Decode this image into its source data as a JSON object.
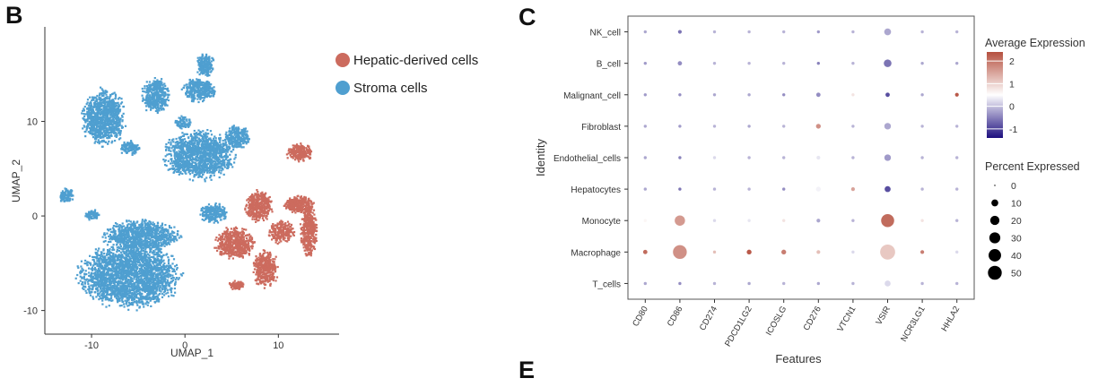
{
  "panels": {
    "b": "B",
    "c": "C",
    "e": "E"
  },
  "colors": {
    "hepatic": "#cc6b5e",
    "stroma": "#4f9fd0",
    "expr_high": "#b5503f",
    "expr_mid": "#ffffff",
    "expr_low": "#1d0f7e"
  },
  "chart_data": [
    {
      "type": "scatter",
      "xlabel": "UMAP_1",
      "ylabel": "UMAP_2",
      "xlim": [
        -15,
        16.5
      ],
      "ylim": [
        -12.5,
        20
      ],
      "xticks": [
        -10,
        0,
        10
      ],
      "yticks": [
        -10,
        0,
        10
      ],
      "grid": false,
      "legend_position": "top-right",
      "series": [
        {
          "name": "Hepatic-derived cells",
          "color": "#cc6b5e",
          "clusters": [
            {
              "x": 5.2,
              "y": -2.8,
              "rx": 2.3,
              "ry": 1.8,
              "n": 550
            },
            {
              "x": 7.8,
              "y": 1.2,
              "rx": 1.6,
              "ry": 1.8,
              "n": 380
            },
            {
              "x": 8.5,
              "y": -5.5,
              "rx": 1.5,
              "ry": 2.1,
              "n": 380
            },
            {
              "x": 10.2,
              "y": -1.6,
              "rx": 1.5,
              "ry": 1.4,
              "n": 220
            },
            {
              "x": 12.1,
              "y": 1.3,
              "rx": 1.7,
              "ry": 1.0,
              "n": 260
            },
            {
              "x": 13.2,
              "y": -1.5,
              "rx": 1.0,
              "ry": 3.0,
              "n": 380
            },
            {
              "x": 12.2,
              "y": 6.8,
              "rx": 1.6,
              "ry": 1.0,
              "n": 230
            },
            {
              "x": 5.5,
              "y": -7.2,
              "rx": 0.9,
              "ry": 0.6,
              "n": 90
            }
          ]
        },
        {
          "name": "Stroma cells",
          "color": "#4f9fd0",
          "clusters": [
            {
              "x": -6.0,
              "y": -6.2,
              "rx": 6.0,
              "ry": 3.8,
              "n": 2400
            },
            {
              "x": -4.8,
              "y": -2.0,
              "rx": 4.5,
              "ry": 1.8,
              "n": 900
            },
            {
              "x": 1.5,
              "y": 6.5,
              "rx": 4.2,
              "ry": 2.9,
              "n": 1300
            },
            {
              "x": -8.8,
              "y": 10.5,
              "rx": 2.5,
              "ry": 3.3,
              "n": 950
            },
            {
              "x": -3.2,
              "y": 12.8,
              "rx": 1.6,
              "ry": 2.0,
              "n": 380
            },
            {
              "x": 1.4,
              "y": 13.4,
              "rx": 2.0,
              "ry": 1.4,
              "n": 320
            },
            {
              "x": 2.1,
              "y": 16.0,
              "rx": 1.1,
              "ry": 1.3,
              "n": 200
            },
            {
              "x": 5.5,
              "y": 8.5,
              "rx": 1.5,
              "ry": 1.4,
              "n": 220
            },
            {
              "x": 3.0,
              "y": 0.4,
              "rx": 1.6,
              "ry": 1.1,
              "n": 220
            },
            {
              "x": -12.8,
              "y": 2.2,
              "rx": 0.9,
              "ry": 0.9,
              "n": 110
            },
            {
              "x": -10.0,
              "y": 0.2,
              "rx": 0.8,
              "ry": 0.6,
              "n": 80
            },
            {
              "x": -0.3,
              "y": 10.0,
              "rx": 1.0,
              "ry": 0.7,
              "n": 90
            },
            {
              "x": -6.0,
              "y": 7.3,
              "rx": 1.2,
              "ry": 0.9,
              "n": 120
            }
          ]
        }
      ]
    },
    {
      "type": "scatter",
      "subtype": "dot_plot",
      "xlabel": "Features",
      "ylabel": "Identity",
      "features": [
        "CD80",
        "CD86",
        "CD274",
        "PDCD1LG2",
        "ICOSLG",
        "CD276",
        "VTCN1",
        "VSIR",
        "NCR3LG1",
        "HHLA2"
      ],
      "identities": [
        "NK_cell",
        "B_cell",
        "Malignant_cell",
        "Fibroblast",
        "Endothelial_cells",
        "Hepatocytes",
        "Monocyte",
        "Macrophage",
        "T_cells"
      ],
      "color_legend": {
        "title": "Average Expression",
        "ticks": [
          2,
          1,
          0,
          -1
        ],
        "range": [
          -1.4,
          2.4
        ]
      },
      "size_legend": {
        "title": "Percent Expressed",
        "ticks": [
          0,
          10,
          20,
          30,
          40,
          50
        ]
      },
      "grid": false,
      "legend_position": "right",
      "points": [
        {
          "identity": "NK_cell",
          "feature": "CD80",
          "pct": 1,
          "avg": -0.2
        },
        {
          "identity": "NK_cell",
          "feature": "CD86",
          "pct": 2,
          "avg": -0.6
        },
        {
          "identity": "NK_cell",
          "feature": "CD274",
          "pct": 1,
          "avg": -0.1
        },
        {
          "identity": "NK_cell",
          "feature": "PDCD1LG2",
          "pct": 1,
          "avg": -0.1
        },
        {
          "identity": "NK_cell",
          "feature": "ICOSLG",
          "pct": 1,
          "avg": -0.1
        },
        {
          "identity": "NK_cell",
          "feature": "CD276",
          "pct": 1,
          "avg": -0.3
        },
        {
          "identity": "NK_cell",
          "feature": "VTCN1",
          "pct": 1,
          "avg": -0.1
        },
        {
          "identity": "NK_cell",
          "feature": "VSIR",
          "pct": 10,
          "avg": -0.2
        },
        {
          "identity": "NK_cell",
          "feature": "NCR3LG1",
          "pct": 1,
          "avg": -0.1
        },
        {
          "identity": "NK_cell",
          "feature": "HHLA2",
          "pct": 1,
          "avg": -0.1
        },
        {
          "identity": "B_cell",
          "feature": "CD80",
          "pct": 1,
          "avg": -0.3
        },
        {
          "identity": "B_cell",
          "feature": "CD86",
          "pct": 3,
          "avg": -0.4
        },
        {
          "identity": "B_cell",
          "feature": "CD274",
          "pct": 1,
          "avg": -0.1
        },
        {
          "identity": "B_cell",
          "feature": "PDCD1LG2",
          "pct": 1,
          "avg": -0.1
        },
        {
          "identity": "B_cell",
          "feature": "ICOSLG",
          "pct": 1,
          "avg": -0.1
        },
        {
          "identity": "B_cell",
          "feature": "CD276",
          "pct": 1,
          "avg": -0.5
        },
        {
          "identity": "B_cell",
          "feature": "VTCN1",
          "pct": 1,
          "avg": -0.1
        },
        {
          "identity": "B_cell",
          "feature": "VSIR",
          "pct": 13,
          "avg": -0.6
        },
        {
          "identity": "B_cell",
          "feature": "NCR3LG1",
          "pct": 1,
          "avg": -0.2
        },
        {
          "identity": "B_cell",
          "feature": "HHLA2",
          "pct": 1,
          "avg": -0.2
        },
        {
          "identity": "Malignant_cell",
          "feature": "CD80",
          "pct": 1,
          "avg": -0.3
        },
        {
          "identity": "Malignant_cell",
          "feature": "CD86",
          "pct": 1,
          "avg": -0.4
        },
        {
          "identity": "Malignant_cell",
          "feature": "CD274",
          "pct": 1,
          "avg": -0.2
        },
        {
          "identity": "Malignant_cell",
          "feature": "PDCD1LG2",
          "pct": 1,
          "avg": -0.2
        },
        {
          "identity": "Malignant_cell",
          "feature": "ICOSLG",
          "pct": 1,
          "avg": -0.4
        },
        {
          "identity": "Malignant_cell",
          "feature": "CD276",
          "pct": 3,
          "avg": -0.4
        },
        {
          "identity": "Malignant_cell",
          "feature": "VTCN1",
          "pct": 1,
          "avg": 0.8
        },
        {
          "identity": "Malignant_cell",
          "feature": "VSIR",
          "pct": 3,
          "avg": -0.9
        },
        {
          "identity": "Malignant_cell",
          "feature": "NCR3LG1",
          "pct": 1,
          "avg": -0.2
        },
        {
          "identity": "Malignant_cell",
          "feature": "HHLA2",
          "pct": 2,
          "avg": 2.3
        },
        {
          "identity": "Fibroblast",
          "feature": "CD80",
          "pct": 1,
          "avg": -0.2
        },
        {
          "identity": "Fibroblast",
          "feature": "CD86",
          "pct": 1,
          "avg": -0.3
        },
        {
          "identity": "Fibroblast",
          "feature": "CD274",
          "pct": 1,
          "avg": -0.1
        },
        {
          "identity": "Fibroblast",
          "feature": "PDCD1LG2",
          "pct": 1,
          "avg": -0.2
        },
        {
          "identity": "Fibroblast",
          "feature": "ICOSLG",
          "pct": 1,
          "avg": -0.1
        },
        {
          "identity": "Fibroblast",
          "feature": "CD276",
          "pct": 4,
          "avg": 1.7
        },
        {
          "identity": "Fibroblast",
          "feature": "VTCN1",
          "pct": 1,
          "avg": -0.1
        },
        {
          "identity": "Fibroblast",
          "feature": "VSIR",
          "pct": 9,
          "avg": -0.2
        },
        {
          "identity": "Fibroblast",
          "feature": "NCR3LG1",
          "pct": 1,
          "avg": -0.1
        },
        {
          "identity": "Fibroblast",
          "feature": "HHLA2",
          "pct": 1,
          "avg": -0.1
        },
        {
          "identity": "Endothelial_cells",
          "feature": "CD80",
          "pct": 1,
          "avg": -0.2
        },
        {
          "identity": "Endothelial_cells",
          "feature": "CD86",
          "pct": 1,
          "avg": -0.5
        },
        {
          "identity": "Endothelial_cells",
          "feature": "CD274",
          "pct": 1,
          "avg": 0.2
        },
        {
          "identity": "Endothelial_cells",
          "feature": "PDCD1LG2",
          "pct": 1,
          "avg": -0.1
        },
        {
          "identity": "Endothelial_cells",
          "feature": "ICOSLG",
          "pct": 1,
          "avg": -0.1
        },
        {
          "identity": "Endothelial_cells",
          "feature": "CD276",
          "pct": 2,
          "avg": 0.3
        },
        {
          "identity": "Endothelial_cells",
          "feature": "VTCN1",
          "pct": 1,
          "avg": -0.1
        },
        {
          "identity": "Endothelial_cells",
          "feature": "VSIR",
          "pct": 9,
          "avg": -0.3
        },
        {
          "identity": "Endothelial_cells",
          "feature": "NCR3LG1",
          "pct": 1,
          "avg": -0.1
        },
        {
          "identity": "Endothelial_cells",
          "feature": "HHLA2",
          "pct": 1,
          "avg": -0.1
        },
        {
          "identity": "Hepatocytes",
          "feature": "CD80",
          "pct": 1,
          "avg": -0.2
        },
        {
          "identity": "Hepatocytes",
          "feature": "CD86",
          "pct": 1,
          "avg": -0.6
        },
        {
          "identity": "Hepatocytes",
          "feature": "CD274",
          "pct": 1,
          "avg": -0.1
        },
        {
          "identity": "Hepatocytes",
          "feature": "PDCD1LG2",
          "pct": 1,
          "avg": -0.1
        },
        {
          "identity": "Hepatocytes",
          "feature": "ICOSLG",
          "pct": 1,
          "avg": -0.4
        },
        {
          "identity": "Hepatocytes",
          "feature": "CD276",
          "pct": 4,
          "avg": 0.4
        },
        {
          "identity": "Hepatocytes",
          "feature": "VTCN1",
          "pct": 2,
          "avg": 1.5
        },
        {
          "identity": "Hepatocytes",
          "feature": "VSIR",
          "pct": 7,
          "avg": -0.9
        },
        {
          "identity": "Hepatocytes",
          "feature": "NCR3LG1",
          "pct": 1,
          "avg": -0.1
        },
        {
          "identity": "Hepatocytes",
          "feature": "HHLA2",
          "pct": 1,
          "avg": -0.1
        },
        {
          "identity": "Monocyte",
          "feature": "CD80",
          "pct": 1,
          "avg": 0.6
        },
        {
          "identity": "Monocyte",
          "feature": "CD86",
          "pct": 26,
          "avg": 1.6
        },
        {
          "identity": "Monocyte",
          "feature": "CD274",
          "pct": 1,
          "avg": 0.2
        },
        {
          "identity": "Monocyte",
          "feature": "PDCD1LG2",
          "pct": 1,
          "avg": 0.3
        },
        {
          "identity": "Monocyte",
          "feature": "ICOSLG",
          "pct": 1,
          "avg": 0.8
        },
        {
          "identity": "Monocyte",
          "feature": "CD276",
          "pct": 2,
          "avg": -0.2
        },
        {
          "identity": "Monocyte",
          "feature": "VTCN1",
          "pct": 1,
          "avg": -0.1
        },
        {
          "identity": "Monocyte",
          "feature": "VSIR",
          "pct": 44,
          "avg": 2.1
        },
        {
          "identity": "Monocyte",
          "feature": "NCR3LG1",
          "pct": 1,
          "avg": 0.8
        },
        {
          "identity": "Monocyte",
          "feature": "HHLA2",
          "pct": 1,
          "avg": -0.1
        },
        {
          "identity": "Macrophage",
          "feature": "CD80",
          "pct": 3,
          "avg": 2.1
        },
        {
          "identity": "Macrophage",
          "feature": "CD86",
          "pct": 50,
          "avg": 1.7
        },
        {
          "identity": "Macrophage",
          "feature": "CD274",
          "pct": 1,
          "avg": 1.2
        },
        {
          "identity": "Macrophage",
          "feature": "PDCD1LG2",
          "pct": 4,
          "avg": 2.3
        },
        {
          "identity": "Macrophage",
          "feature": "ICOSLG",
          "pct": 4,
          "avg": 1.9
        },
        {
          "identity": "Macrophage",
          "feature": "CD276",
          "pct": 2,
          "avg": 1.2
        },
        {
          "identity": "Macrophage",
          "feature": "VTCN1",
          "pct": 1,
          "avg": 0.2
        },
        {
          "identity": "Macrophage",
          "feature": "VSIR",
          "pct": 60,
          "avg": 1.1
        },
        {
          "identity": "Macrophage",
          "feature": "NCR3LG1",
          "pct": 2,
          "avg": 1.9
        },
        {
          "identity": "Macrophage",
          "feature": "HHLA2",
          "pct": 1,
          "avg": 0.2
        },
        {
          "identity": "T_cells",
          "feature": "CD80",
          "pct": 1,
          "avg": -0.2
        },
        {
          "identity": "T_cells",
          "feature": "CD86",
          "pct": 1,
          "avg": -0.4
        },
        {
          "identity": "T_cells",
          "feature": "CD274",
          "pct": 1,
          "avg": -0.1
        },
        {
          "identity": "T_cells",
          "feature": "PDCD1LG2",
          "pct": 1,
          "avg": -0.2
        },
        {
          "identity": "T_cells",
          "feature": "ICOSLG",
          "pct": 1,
          "avg": -0.1
        },
        {
          "identity": "T_cells",
          "feature": "CD276",
          "pct": 1,
          "avg": -0.2
        },
        {
          "identity": "T_cells",
          "feature": "VTCN1",
          "pct": 1,
          "avg": -0.1
        },
        {
          "identity": "T_cells",
          "feature": "VSIR",
          "pct": 7,
          "avg": 0.2
        },
        {
          "identity": "T_cells",
          "feature": "NCR3LG1",
          "pct": 1,
          "avg": -0.1
        },
        {
          "identity": "T_cells",
          "feature": "HHLA2",
          "pct": 1,
          "avg": -0.1
        }
      ]
    }
  ]
}
